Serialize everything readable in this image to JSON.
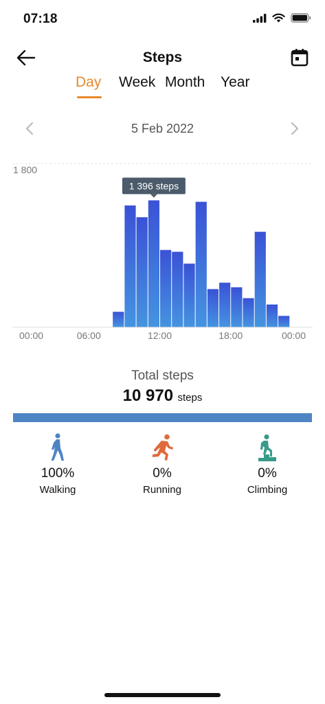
{
  "status": {
    "time": "07:18"
  },
  "nav": {
    "title": "Steps"
  },
  "tabs": [
    {
      "label": "Day",
      "active": true
    },
    {
      "label": "Week",
      "active": false
    },
    {
      "label": "Month",
      "active": false
    },
    {
      "label": "Year",
      "active": false
    }
  ],
  "date": {
    "label": "5 Feb 2022"
  },
  "chart_data": {
    "type": "bar",
    "title": "",
    "xlabel": "",
    "ylabel": "",
    "ylim": [
      0,
      1800
    ],
    "y_tick_labels": [
      "1 800"
    ],
    "x_tick_labels": [
      "00:00",
      "06:00",
      "12:00",
      "18:00",
      "00:00"
    ],
    "grid": "horizontal dashed",
    "categories": [
      "00:00",
      "01:00",
      "02:00",
      "03:00",
      "04:00",
      "05:00",
      "06:00",
      "07:00",
      "08:00",
      "09:00",
      "10:00",
      "11:00",
      "12:00",
      "13:00",
      "14:00",
      "15:00",
      "16:00",
      "17:00",
      "18:00",
      "19:00",
      "20:00",
      "21:00",
      "22:00",
      "23:00"
    ],
    "values": [
      0,
      0,
      0,
      0,
      0,
      0,
      0,
      0,
      170,
      1340,
      1210,
      1396,
      850,
      830,
      700,
      1380,
      420,
      490,
      440,
      320,
      1050,
      250,
      125,
      0
    ],
    "highlight_index": 11,
    "tooltip": "1 396 steps",
    "colors": {
      "bar_top": "#3a52d6",
      "bar_bottom": "#4594e0",
      "tooltip_bg": "#4b5b6b"
    }
  },
  "totals": {
    "label": "Total steps",
    "value": "10 970",
    "unit": "steps"
  },
  "progress": {
    "walking_fraction": 1.0,
    "color": "#4e84c4"
  },
  "activities": [
    {
      "name": "Walking",
      "pct": "100%",
      "icon": "walking-icon",
      "color": "#4e84c4"
    },
    {
      "name": "Running",
      "pct": "0%",
      "icon": "running-icon",
      "color": "#e06a3b"
    },
    {
      "name": "Climbing",
      "pct": "0%",
      "icon": "climbing-icon",
      "color": "#3a9a8a"
    }
  ]
}
